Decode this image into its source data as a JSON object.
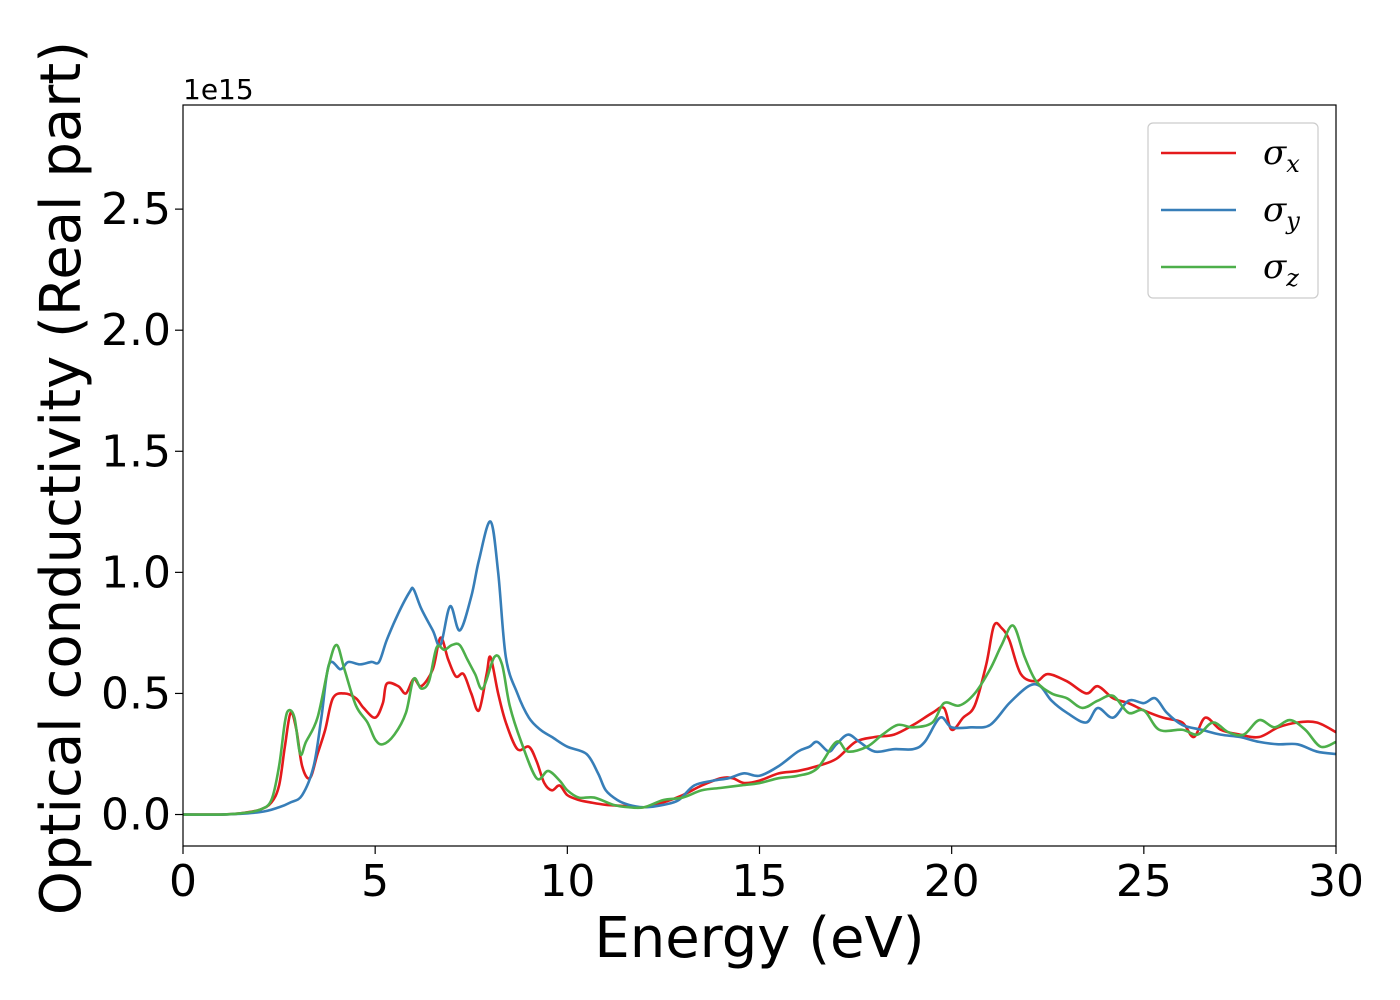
{
  "chart_data": {
    "type": "line",
    "xlabel": "Energy (eV)",
    "ylabel": "Optical conductivity (Real part)",
    "y_offset_label": "1e15",
    "xlim": [
      0,
      30
    ],
    "ylim": [
      -0.13,
      2.93
    ],
    "xticks": [
      0,
      5,
      10,
      15,
      20,
      25,
      30
    ],
    "xtick_labels": [
      "0",
      "5",
      "10",
      "15",
      "20",
      "25",
      "30"
    ],
    "yticks": [
      0.0,
      0.5,
      1.0,
      1.5,
      2.0,
      2.5
    ],
    "ytick_labels": [
      "0.0",
      "0.5",
      "1.0",
      "1.5",
      "2.0",
      "2.5"
    ],
    "grid": false,
    "legend_position": "top-right",
    "series": [
      {
        "name": "σ",
        "subscript": "x",
        "color": "#e41a1c",
        "points": [
          [
            0,
            0.0
          ],
          [
            1.0,
            0.0
          ],
          [
            1.5,
            0.005
          ],
          [
            2.0,
            0.02
          ],
          [
            2.3,
            0.05
          ],
          [
            2.5,
            0.12
          ],
          [
            2.65,
            0.28
          ],
          [
            2.8,
            0.42
          ],
          [
            2.95,
            0.35
          ],
          [
            3.1,
            0.2
          ],
          [
            3.3,
            0.15
          ],
          [
            3.5,
            0.25
          ],
          [
            3.7,
            0.35
          ],
          [
            3.9,
            0.48
          ],
          [
            4.2,
            0.5
          ],
          [
            4.5,
            0.48
          ],
          [
            4.7,
            0.44
          ],
          [
            5.0,
            0.4
          ],
          [
            5.2,
            0.46
          ],
          [
            5.3,
            0.54
          ],
          [
            5.6,
            0.53
          ],
          [
            5.8,
            0.5
          ],
          [
            6.0,
            0.56
          ],
          [
            6.2,
            0.53
          ],
          [
            6.5,
            0.6
          ],
          [
            6.7,
            0.73
          ],
          [
            6.9,
            0.64
          ],
          [
            7.1,
            0.57
          ],
          [
            7.3,
            0.58
          ],
          [
            7.5,
            0.5
          ],
          [
            7.7,
            0.43
          ],
          [
            7.9,
            0.58
          ],
          [
            8.0,
            0.65
          ],
          [
            8.2,
            0.5
          ],
          [
            8.4,
            0.38
          ],
          [
            8.7,
            0.27
          ],
          [
            9.0,
            0.28
          ],
          [
            9.2,
            0.22
          ],
          [
            9.4,
            0.13
          ],
          [
            9.6,
            0.1
          ],
          [
            9.8,
            0.12
          ],
          [
            10.0,
            0.08
          ],
          [
            10.3,
            0.06
          ],
          [
            10.6,
            0.05
          ],
          [
            11.0,
            0.04
          ],
          [
            11.5,
            0.035
          ],
          [
            12.0,
            0.03
          ],
          [
            12.5,
            0.05
          ],
          [
            13.0,
            0.08
          ],
          [
            13.5,
            0.12
          ],
          [
            14.0,
            0.15
          ],
          [
            14.3,
            0.15
          ],
          [
            14.6,
            0.13
          ],
          [
            15.0,
            0.14
          ],
          [
            15.5,
            0.17
          ],
          [
            16.0,
            0.18
          ],
          [
            16.5,
            0.2
          ],
          [
            17.0,
            0.23
          ],
          [
            17.5,
            0.3
          ],
          [
            18.0,
            0.32
          ],
          [
            18.5,
            0.33
          ],
          [
            19.0,
            0.37
          ],
          [
            19.5,
            0.42
          ],
          [
            19.8,
            0.44
          ],
          [
            20.0,
            0.35
          ],
          [
            20.3,
            0.4
          ],
          [
            20.6,
            0.45
          ],
          [
            20.9,
            0.62
          ],
          [
            21.1,
            0.78
          ],
          [
            21.3,
            0.77
          ],
          [
            21.5,
            0.72
          ],
          [
            21.8,
            0.58
          ],
          [
            22.2,
            0.55
          ],
          [
            22.5,
            0.58
          ],
          [
            23.0,
            0.55
          ],
          [
            23.5,
            0.5
          ],
          [
            23.8,
            0.53
          ],
          [
            24.2,
            0.48
          ],
          [
            24.6,
            0.46
          ],
          [
            25.0,
            0.43
          ],
          [
            25.5,
            0.4
          ],
          [
            26.0,
            0.38
          ],
          [
            26.3,
            0.32
          ],
          [
            26.6,
            0.4
          ],
          [
            27.0,
            0.35
          ],
          [
            27.5,
            0.33
          ],
          [
            28.0,
            0.32
          ],
          [
            28.5,
            0.36
          ],
          [
            29.0,
            0.38
          ],
          [
            29.5,
            0.38
          ],
          [
            30.0,
            0.34
          ]
        ]
      },
      {
        "name": "σ",
        "subscript": "y",
        "color": "#377eb8",
        "points": [
          [
            0,
            0.0
          ],
          [
            1.0,
            0.0
          ],
          [
            2.0,
            0.01
          ],
          [
            2.5,
            0.03
          ],
          [
            2.8,
            0.05
          ],
          [
            3.1,
            0.08
          ],
          [
            3.4,
            0.2
          ],
          [
            3.6,
            0.4
          ],
          [
            3.8,
            0.62
          ],
          [
            4.1,
            0.6
          ],
          [
            4.3,
            0.63
          ],
          [
            4.6,
            0.62
          ],
          [
            4.9,
            0.63
          ],
          [
            5.1,
            0.63
          ],
          [
            5.3,
            0.72
          ],
          [
            5.6,
            0.83
          ],
          [
            5.9,
            0.92
          ],
          [
            6.0,
            0.93
          ],
          [
            6.2,
            0.85
          ],
          [
            6.5,
            0.76
          ],
          [
            6.7,
            0.7
          ],
          [
            6.95,
            0.86
          ],
          [
            7.2,
            0.76
          ],
          [
            7.5,
            0.9
          ],
          [
            7.7,
            1.05
          ],
          [
            8.0,
            1.21
          ],
          [
            8.2,
            1.0
          ],
          [
            8.4,
            0.65
          ],
          [
            8.7,
            0.5
          ],
          [
            9.0,
            0.4
          ],
          [
            9.3,
            0.35
          ],
          [
            9.6,
            0.32
          ],
          [
            10.0,
            0.28
          ],
          [
            10.5,
            0.25
          ],
          [
            10.8,
            0.17
          ],
          [
            11.0,
            0.1
          ],
          [
            11.3,
            0.06
          ],
          [
            11.6,
            0.04
          ],
          [
            12.0,
            0.03
          ],
          [
            12.5,
            0.04
          ],
          [
            12.9,
            0.06
          ],
          [
            13.3,
            0.12
          ],
          [
            13.8,
            0.14
          ],
          [
            14.2,
            0.15
          ],
          [
            14.6,
            0.17
          ],
          [
            15.0,
            0.16
          ],
          [
            15.5,
            0.2
          ],
          [
            16.0,
            0.26
          ],
          [
            16.3,
            0.28
          ],
          [
            16.5,
            0.3
          ],
          [
            16.8,
            0.26
          ],
          [
            17.0,
            0.29
          ],
          [
            17.3,
            0.33
          ],
          [
            17.6,
            0.3
          ],
          [
            18.0,
            0.26
          ],
          [
            18.5,
            0.27
          ],
          [
            19.0,
            0.27
          ],
          [
            19.3,
            0.3
          ],
          [
            19.7,
            0.4
          ],
          [
            20.0,
            0.36
          ],
          [
            20.5,
            0.36
          ],
          [
            21.0,
            0.37
          ],
          [
            21.5,
            0.46
          ],
          [
            22.0,
            0.53
          ],
          [
            22.3,
            0.53
          ],
          [
            22.6,
            0.47
          ],
          [
            23.0,
            0.42
          ],
          [
            23.5,
            0.38
          ],
          [
            23.8,
            0.44
          ],
          [
            24.2,
            0.4
          ],
          [
            24.6,
            0.47
          ],
          [
            25.0,
            0.46
          ],
          [
            25.3,
            0.48
          ],
          [
            25.6,
            0.42
          ],
          [
            26.0,
            0.37
          ],
          [
            26.5,
            0.35
          ],
          [
            27.0,
            0.33
          ],
          [
            27.5,
            0.32
          ],
          [
            28.0,
            0.3
          ],
          [
            28.5,
            0.29
          ],
          [
            29.0,
            0.29
          ],
          [
            29.5,
            0.26
          ],
          [
            30.0,
            0.25
          ]
        ]
      },
      {
        "name": "σ",
        "subscript": "z",
        "color": "#4daf4a",
        "points": [
          [
            0,
            0.0
          ],
          [
            1.0,
            0.0
          ],
          [
            1.5,
            0.005
          ],
          [
            2.0,
            0.02
          ],
          [
            2.3,
            0.06
          ],
          [
            2.5,
            0.2
          ],
          [
            2.65,
            0.38
          ],
          [
            2.75,
            0.43
          ],
          [
            2.9,
            0.4
          ],
          [
            3.05,
            0.25
          ],
          [
            3.2,
            0.3
          ],
          [
            3.5,
            0.4
          ],
          [
            3.8,
            0.62
          ],
          [
            4.0,
            0.7
          ],
          [
            4.2,
            0.6
          ],
          [
            4.5,
            0.45
          ],
          [
            4.8,
            0.38
          ],
          [
            5.0,
            0.31
          ],
          [
            5.2,
            0.29
          ],
          [
            5.5,
            0.33
          ],
          [
            5.8,
            0.42
          ],
          [
            6.0,
            0.56
          ],
          [
            6.2,
            0.52
          ],
          [
            6.4,
            0.55
          ],
          [
            6.6,
            0.69
          ],
          [
            6.8,
            0.68
          ],
          [
            7.0,
            0.7
          ],
          [
            7.2,
            0.7
          ],
          [
            7.4,
            0.64
          ],
          [
            7.6,
            0.58
          ],
          [
            7.8,
            0.52
          ],
          [
            8.1,
            0.65
          ],
          [
            8.3,
            0.62
          ],
          [
            8.5,
            0.45
          ],
          [
            8.8,
            0.3
          ],
          [
            9.2,
            0.15
          ],
          [
            9.5,
            0.18
          ],
          [
            9.8,
            0.14
          ],
          [
            10.0,
            0.1
          ],
          [
            10.3,
            0.07
          ],
          [
            10.7,
            0.07
          ],
          [
            11.2,
            0.04
          ],
          [
            11.6,
            0.03
          ],
          [
            12.0,
            0.03
          ],
          [
            12.5,
            0.06
          ],
          [
            13.0,
            0.07
          ],
          [
            13.5,
            0.1
          ],
          [
            14.0,
            0.11
          ],
          [
            14.5,
            0.12
          ],
          [
            15.0,
            0.13
          ],
          [
            15.5,
            0.15
          ],
          [
            16.0,
            0.16
          ],
          [
            16.5,
            0.19
          ],
          [
            17.0,
            0.3
          ],
          [
            17.3,
            0.26
          ],
          [
            17.8,
            0.28
          ],
          [
            18.2,
            0.33
          ],
          [
            18.6,
            0.37
          ],
          [
            19.0,
            0.36
          ],
          [
            19.5,
            0.38
          ],
          [
            19.8,
            0.46
          ],
          [
            20.2,
            0.45
          ],
          [
            20.6,
            0.5
          ],
          [
            21.0,
            0.6
          ],
          [
            21.3,
            0.7
          ],
          [
            21.6,
            0.78
          ],
          [
            21.9,
            0.65
          ],
          [
            22.2,
            0.55
          ],
          [
            22.6,
            0.5
          ],
          [
            23.0,
            0.48
          ],
          [
            23.4,
            0.44
          ],
          [
            23.8,
            0.47
          ],
          [
            24.2,
            0.49
          ],
          [
            24.6,
            0.42
          ],
          [
            25.0,
            0.43
          ],
          [
            25.4,
            0.35
          ],
          [
            26.0,
            0.35
          ],
          [
            26.4,
            0.33
          ],
          [
            26.8,
            0.38
          ],
          [
            27.2,
            0.34
          ],
          [
            27.6,
            0.33
          ],
          [
            28.0,
            0.39
          ],
          [
            28.4,
            0.36
          ],
          [
            28.8,
            0.39
          ],
          [
            29.2,
            0.35
          ],
          [
            29.6,
            0.28
          ],
          [
            30.0,
            0.3
          ]
        ]
      }
    ]
  }
}
